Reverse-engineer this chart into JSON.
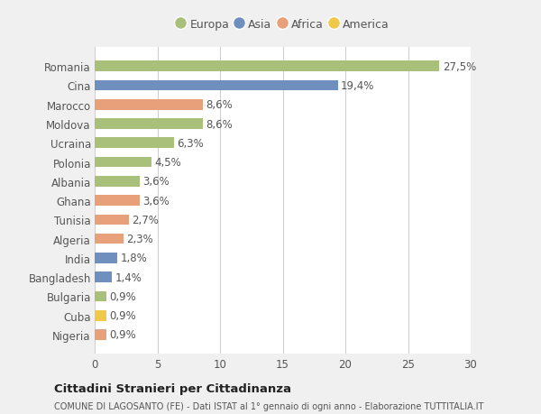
{
  "categories": [
    "Romania",
    "Cina",
    "Marocco",
    "Moldova",
    "Ucraina",
    "Polonia",
    "Albania",
    "Ghana",
    "Tunisia",
    "Algeria",
    "India",
    "Bangladesh",
    "Bulgaria",
    "Cuba",
    "Nigeria"
  ],
  "values": [
    27.5,
    19.4,
    8.6,
    8.6,
    6.3,
    4.5,
    3.6,
    3.6,
    2.7,
    2.3,
    1.8,
    1.4,
    0.9,
    0.9,
    0.9
  ],
  "labels": [
    "27,5%",
    "19,4%",
    "8,6%",
    "8,6%",
    "6,3%",
    "4,5%",
    "3,6%",
    "3,6%",
    "2,7%",
    "2,3%",
    "1,8%",
    "1,4%",
    "0,9%",
    "0,9%",
    "0,9%"
  ],
  "colors": [
    "#a8c07a",
    "#6f8fbf",
    "#e8a07a",
    "#a8c07a",
    "#a8c07a",
    "#a8c07a",
    "#a8c07a",
    "#e8a07a",
    "#e8a07a",
    "#e8a07a",
    "#6f8fbf",
    "#6f8fbf",
    "#a8c07a",
    "#f0c84a",
    "#e8a07a"
  ],
  "legend_labels": [
    "Europa",
    "Asia",
    "Africa",
    "America"
  ],
  "legend_colors": [
    "#a8c07a",
    "#6f8fbf",
    "#e8a07a",
    "#f0c84a"
  ],
  "xlim": [
    0,
    30
  ],
  "xticks": [
    0,
    5,
    10,
    15,
    20,
    25,
    30
  ],
  "title": "Cittadini Stranieri per Cittadinanza",
  "subtitle": "COMUNE DI LAGOSANTO (FE) - Dati ISTAT al 1° gennaio di ogni anno - Elaborazione TUTTITALIA.IT",
  "background_color": "#f0f0f0",
  "plot_bg_color": "#ffffff",
  "grid_color": "#cccccc",
  "text_color": "#555555",
  "label_fontsize": 8.5,
  "tick_fontsize": 8.5,
  "bar_height": 0.55
}
